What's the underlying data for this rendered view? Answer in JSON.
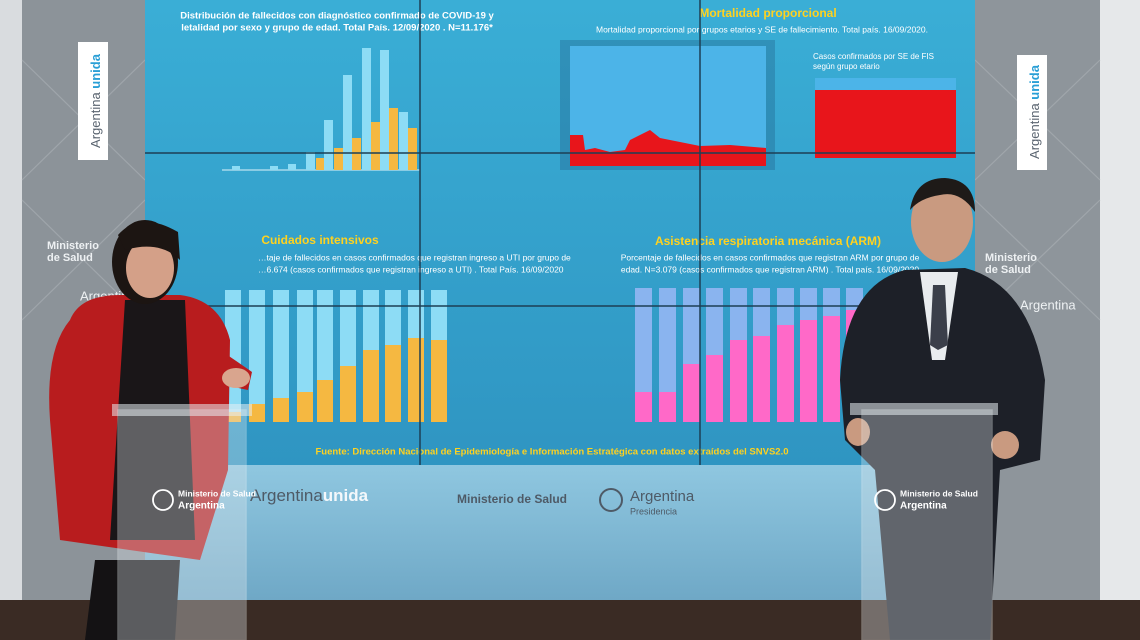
{
  "screen": {
    "panels": [
      {
        "title_lines": [
          "Distribución de fallecidos con diagnóstico confirmado de COVID-19 y",
          "letalidad por sexo y grupo de edad. Total País. 12/09/2020 . N=11.176*"
        ]
      },
      {
        "title": "Mortalidad proporcional",
        "subtitle": "Mortalidad proporcional por grupos etarios y SE de fallecimiento. Total país. 16/09/2020.",
        "inset_title_lines": [
          "Casos confirmados por SE de FIS",
          "según grupo etario"
        ]
      },
      {
        "title": "Cuidados intensivos",
        "subtitle_lines": [
          "…taje de fallecidos en casos confirmados que registran ingreso a UTI por grupo de",
          "…6.674 (casos confirmados que registran ingreso a UTI) . Total País. 16/09/2020"
        ]
      },
      {
        "title": "Asistencia respiratoria mecánica (ARM)",
        "subtitle_lines": [
          "Porcentaje de fallecidos en casos confirmados que registran ARM por grupo de",
          "edad. N=3.079 (casos confirmados que registran ARM) . Total país. 16/09/2020"
        ]
      }
    ],
    "source": "Fuente: Dirección Nacional de Epidemiología e Información Estratégica con datos extraídos del SNVS2.0"
  },
  "wall": {
    "brand_main": "Argentina",
    "brand_accent": "unida",
    "ministry": "Ministerio de Salud",
    "country": "Argentina",
    "presidency": "Presidencia"
  },
  "side_walls": {
    "ministry_lines": [
      "Ministerio",
      "de Salud"
    ],
    "country": "Argentina"
  },
  "podiums": [
    {
      "ministry": "Ministerio de Salud",
      "country": "Argentina"
    },
    {
      "ministry": "Ministerio de Salud",
      "country": "Argentina"
    }
  ]
}
